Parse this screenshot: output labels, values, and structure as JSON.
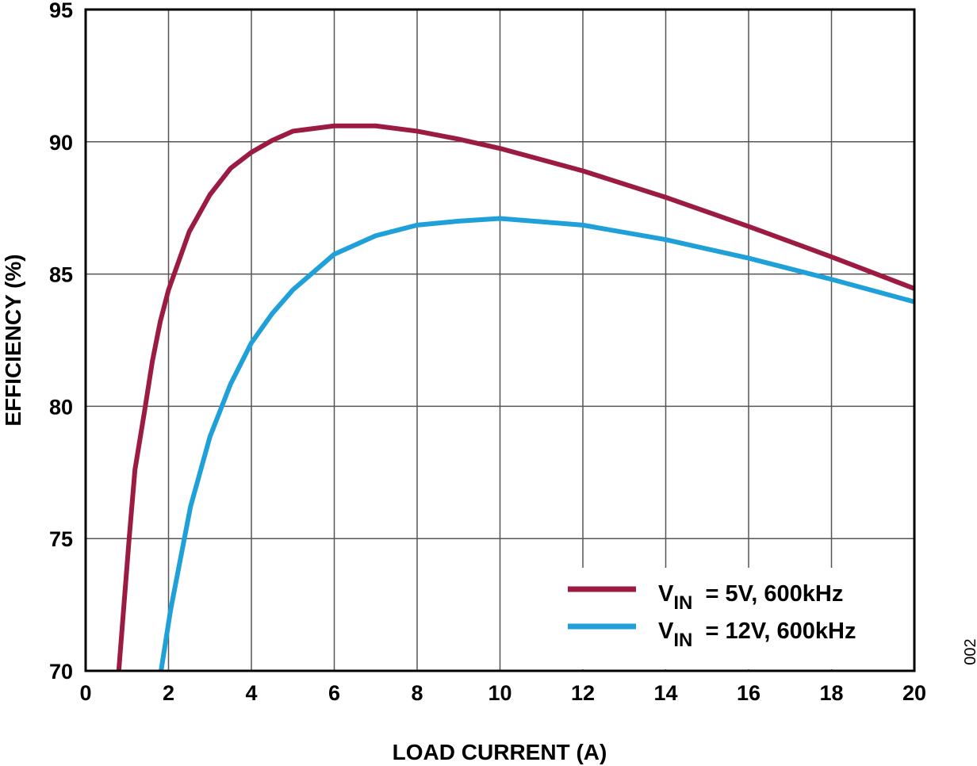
{
  "chart_data": {
    "type": "line",
    "xlabel": "LOAD CURRENT (A)",
    "ylabel": "EFFICIENCY (%)",
    "xlim": [
      0,
      20
    ],
    "ylim": [
      70,
      95
    ],
    "xticks": [
      0,
      2,
      4,
      6,
      8,
      10,
      12,
      14,
      16,
      18,
      20
    ],
    "yticks": [
      70,
      75,
      80,
      85,
      90,
      95
    ],
    "grid": true,
    "legend_placement": "bottom-right",
    "figure_code": "002",
    "series": [
      {
        "legend": {
          "v": "V",
          "sub": "IN",
          "rest": " = 5V, 600kHz"
        },
        "color": "#9b1b42",
        "x": [
          0.8,
          1.05,
          1.19,
          1.42,
          1.61,
          1.8,
          2.0,
          2.5,
          3.0,
          3.5,
          4.0,
          4.5,
          5.0,
          6.0,
          7.0,
          8.0,
          9.0,
          10.0,
          12.0,
          14.0,
          16.0,
          18.0,
          20.0
        ],
        "y": [
          70,
          75,
          77.6,
          79.8,
          81.7,
          83.2,
          84.4,
          86.6,
          88.0,
          89.0,
          89.6,
          90.05,
          90.4,
          90.6,
          90.6,
          90.4,
          90.1,
          89.75,
          88.9,
          87.9,
          86.8,
          85.65,
          84.45
        ]
      },
      {
        "legend": {
          "v": "V",
          "sub": "IN",
          "rest": " = 12V, 600kHz"
        },
        "color": "#1fa0d8",
        "x": [
          1.82,
          2.05,
          2.53,
          3.0,
          3.5,
          4.0,
          4.5,
          5.0,
          6.0,
          7.0,
          8.0,
          9.0,
          10.0,
          12.0,
          14.0,
          16.0,
          18.0,
          20.0
        ],
        "y": [
          70,
          72.3,
          76.2,
          78.85,
          80.85,
          82.4,
          83.5,
          84.4,
          85.75,
          86.45,
          86.85,
          87.0,
          87.1,
          86.85,
          86.3,
          85.6,
          84.8,
          83.95
        ]
      }
    ]
  }
}
